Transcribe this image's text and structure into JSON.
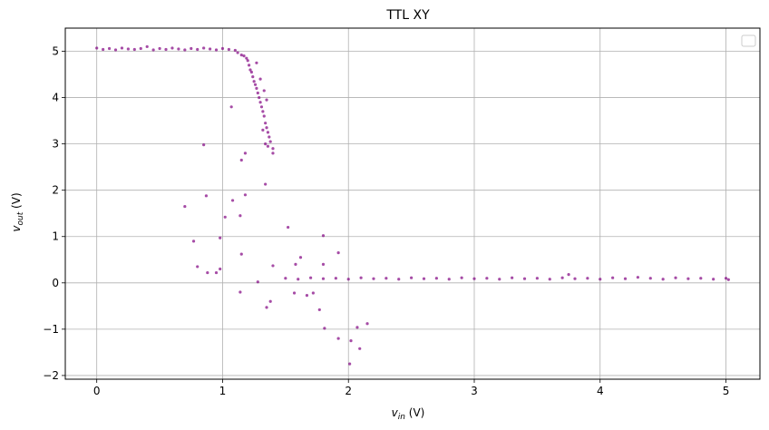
{
  "chart_data": {
    "type": "scatter",
    "title": "TTL XY",
    "xlabel_main": "v",
    "xlabel_sub": "in",
    "xlabel_unit": " (V)",
    "ylabel_main": "v",
    "ylabel_sub": "out",
    "ylabel_unit": " (V)",
    "xlim": [
      -0.25,
      5.27
    ],
    "ylim": [
      -2.08,
      5.5
    ],
    "xticks": [
      0,
      1,
      2,
      3,
      4,
      5
    ],
    "yticks": [
      -2,
      -1,
      0,
      1,
      2,
      3,
      4,
      5
    ],
    "grid": true,
    "legend": "top-right",
    "marker_color": "#800080",
    "series": [
      {
        "points": [
          [
            0.0,
            5.07
          ],
          [
            0.05,
            5.04
          ],
          [
            0.1,
            5.06
          ],
          [
            0.15,
            5.03
          ],
          [
            0.2,
            5.07
          ],
          [
            0.25,
            5.05
          ],
          [
            0.3,
            5.04
          ],
          [
            0.35,
            5.06
          ],
          [
            0.4,
            5.1
          ],
          [
            0.45,
            5.03
          ],
          [
            0.5,
            5.06
          ],
          [
            0.55,
            5.04
          ],
          [
            0.6,
            5.07
          ],
          [
            0.65,
            5.05
          ],
          [
            0.7,
            5.03
          ],
          [
            0.75,
            5.06
          ],
          [
            0.8,
            5.04
          ],
          [
            0.85,
            5.07
          ],
          [
            0.9,
            5.05
          ],
          [
            0.95,
            5.03
          ],
          [
            1.0,
            5.06
          ],
          [
            1.05,
            5.04
          ],
          [
            1.1,
            5.02
          ],
          [
            1.12,
            4.97
          ],
          [
            1.15,
            4.92
          ],
          [
            1.17,
            4.9
          ],
          [
            1.19,
            4.85
          ],
          [
            1.2,
            4.8
          ],
          [
            1.21,
            4.7
          ],
          [
            1.22,
            4.6
          ],
          [
            1.23,
            4.55
          ],
          [
            1.24,
            4.45
          ],
          [
            1.25,
            4.35
          ],
          [
            1.26,
            4.28
          ],
          [
            1.27,
            4.2
          ],
          [
            1.28,
            4.1
          ],
          [
            1.29,
            4.0
          ],
          [
            1.3,
            3.9
          ],
          [
            1.31,
            3.8
          ],
          [
            1.32,
            3.7
          ],
          [
            1.33,
            3.6
          ],
          [
            1.34,
            3.45
          ],
          [
            1.35,
            3.35
          ],
          [
            1.36,
            3.25
          ],
          [
            1.37,
            3.15
          ],
          [
            1.38,
            3.05
          ],
          [
            1.4,
            2.9
          ],
          [
            1.4,
            2.8
          ],
          [
            1.27,
            4.75
          ],
          [
            1.3,
            4.4
          ],
          [
            1.33,
            4.15
          ],
          [
            1.35,
            3.95
          ],
          [
            1.32,
            3.3
          ],
          [
            1.34,
            3.0
          ],
          [
            1.36,
            2.95
          ],
          [
            1.07,
            3.8
          ],
          [
            0.85,
            2.98
          ],
          [
            1.18,
            2.8
          ],
          [
            1.15,
            2.65
          ],
          [
            1.34,
            2.13
          ],
          [
            0.87,
            1.88
          ],
          [
            1.08,
            1.78
          ],
          [
            1.18,
            1.9
          ],
          [
            0.7,
            1.65
          ],
          [
            1.14,
            1.45
          ],
          [
            1.02,
            1.42
          ],
          [
            0.98,
            0.97
          ],
          [
            0.77,
            0.9
          ],
          [
            1.52,
            1.2
          ],
          [
            1.15,
            0.62
          ],
          [
            0.8,
            0.35
          ],
          [
            0.88,
            0.22
          ],
          [
            0.95,
            0.22
          ],
          [
            0.98,
            0.3
          ],
          [
            1.28,
            0.02
          ],
          [
            1.4,
            0.37
          ],
          [
            1.62,
            0.55
          ],
          [
            1.58,
            0.4
          ],
          [
            1.8,
            1.02
          ],
          [
            1.8,
            0.4
          ],
          [
            1.92,
            0.65
          ],
          [
            1.14,
            -0.2
          ],
          [
            1.38,
            -0.4
          ],
          [
            1.35,
            -0.53
          ],
          [
            1.57,
            -0.22
          ],
          [
            1.67,
            -0.27
          ],
          [
            1.77,
            -0.58
          ],
          [
            1.81,
            -0.98
          ],
          [
            1.92,
            -1.2
          ],
          [
            2.02,
            -1.25
          ],
          [
            2.07,
            -0.96
          ],
          [
            2.15,
            -0.88
          ],
          [
            2.09,
            -1.42
          ],
          [
            2.01,
            -1.75
          ],
          [
            1.72,
            -0.22
          ],
          [
            1.5,
            0.1
          ],
          [
            1.6,
            0.08
          ],
          [
            1.7,
            0.11
          ],
          [
            1.8,
            0.09
          ],
          [
            1.9,
            0.1
          ],
          [
            2.0,
            0.08
          ],
          [
            2.1,
            0.11
          ],
          [
            2.2,
            0.09
          ],
          [
            2.3,
            0.1
          ],
          [
            2.4,
            0.08
          ],
          [
            2.5,
            0.11
          ],
          [
            2.6,
            0.09
          ],
          [
            2.7,
            0.1
          ],
          [
            2.8,
            0.08
          ],
          [
            2.9,
            0.11
          ],
          [
            3.0,
            0.09
          ],
          [
            3.1,
            0.1
          ],
          [
            3.2,
            0.08
          ],
          [
            3.3,
            0.11
          ],
          [
            3.4,
            0.09
          ],
          [
            3.5,
            0.1
          ],
          [
            3.6,
            0.08
          ],
          [
            3.7,
            0.11
          ],
          [
            3.75,
            0.18
          ],
          [
            3.8,
            0.09
          ],
          [
            3.9,
            0.1
          ],
          [
            4.0,
            0.08
          ],
          [
            4.1,
            0.11
          ],
          [
            4.2,
            0.09
          ],
          [
            4.3,
            0.12
          ],
          [
            4.4,
            0.1
          ],
          [
            4.5,
            0.08
          ],
          [
            4.6,
            0.11
          ],
          [
            4.7,
            0.09
          ],
          [
            4.8,
            0.1
          ],
          [
            4.9,
            0.08
          ],
          [
            5.0,
            0.1
          ],
          [
            5.02,
            0.07
          ]
        ]
      }
    ]
  }
}
